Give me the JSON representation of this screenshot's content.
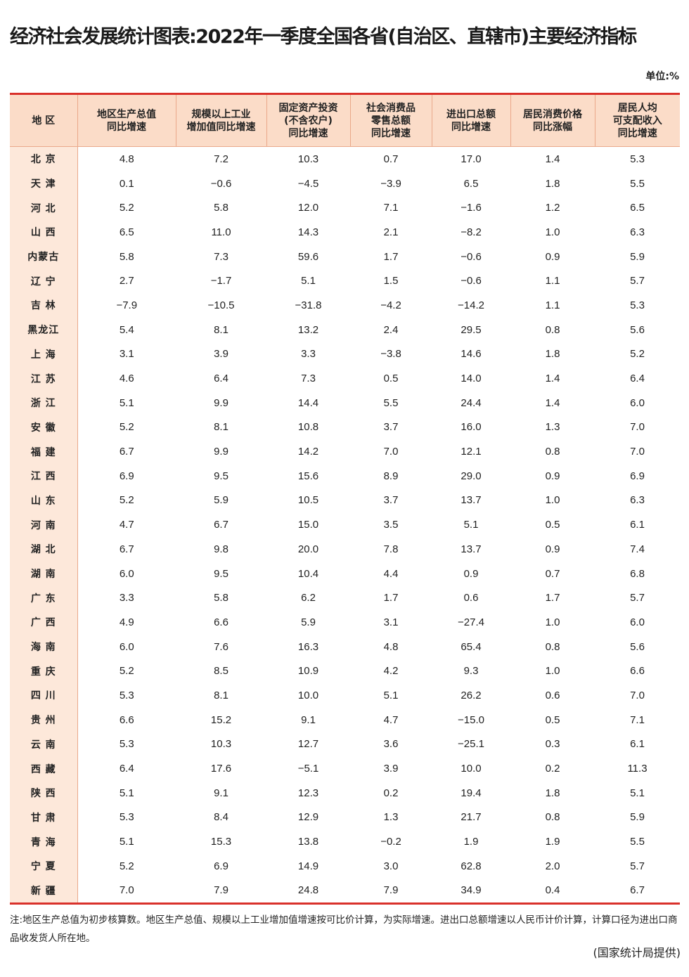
{
  "title": "经济社会发展统计图表:2022年一季度全国各省(自治区、直辖市)主要经济指标",
  "unit": "单位:%",
  "table": {
    "headers": [
      "地 区",
      "地区生产总值\n同比增速",
      "规模以上工业\n增加值同比增速",
      "固定资产投资\n(不含农户)\n同比增速",
      "社会消费品\n零售总额\n同比增速",
      "进出口总额\n同比增速",
      "居民消费价格\n同比涨幅",
      "居民人均\n可支配收入\n同比增速"
    ],
    "rows": [
      [
        "北 京",
        "4.8",
        "7.2",
        "10.3",
        "0.7",
        "17.0",
        "1.4",
        "5.3"
      ],
      [
        "天 津",
        "0.1",
        "−0.6",
        "−4.5",
        "−3.9",
        "6.5",
        "1.8",
        "5.5"
      ],
      [
        "河 北",
        "5.2",
        "5.8",
        "12.0",
        "7.1",
        "−1.6",
        "1.2",
        "6.5"
      ],
      [
        "山 西",
        "6.5",
        "11.0",
        "14.3",
        "2.1",
        "−8.2",
        "1.0",
        "6.3"
      ],
      [
        "内蒙古",
        "5.8",
        "7.3",
        "59.6",
        "1.7",
        "−0.6",
        "0.9",
        "5.9"
      ],
      [
        "辽 宁",
        "2.7",
        "−1.7",
        "5.1",
        "1.5",
        "−0.6",
        "1.1",
        "5.7"
      ],
      [
        "吉 林",
        "−7.9",
        "−10.5",
        "−31.8",
        "−4.2",
        "−14.2",
        "1.1",
        "5.3"
      ],
      [
        "黑龙江",
        "5.4",
        "8.1",
        "13.2",
        "2.4",
        "29.5",
        "0.8",
        "5.6"
      ],
      [
        "上 海",
        "3.1",
        "3.9",
        "3.3",
        "−3.8",
        "14.6",
        "1.8",
        "5.2"
      ],
      [
        "江 苏",
        "4.6",
        "6.4",
        "7.3",
        "0.5",
        "14.0",
        "1.4",
        "6.4"
      ],
      [
        "浙 江",
        "5.1",
        "9.9",
        "14.4",
        "5.5",
        "24.4",
        "1.4",
        "6.0"
      ],
      [
        "安 徽",
        "5.2",
        "8.1",
        "10.8",
        "3.7",
        "16.0",
        "1.3",
        "7.0"
      ],
      [
        "福 建",
        "6.7",
        "9.9",
        "14.2",
        "7.0",
        "12.1",
        "0.8",
        "7.0"
      ],
      [
        "江 西",
        "6.9",
        "9.5",
        "15.6",
        "8.9",
        "29.0",
        "0.9",
        "6.9"
      ],
      [
        "山 东",
        "5.2",
        "5.9",
        "10.5",
        "3.7",
        "13.7",
        "1.0",
        "6.3"
      ],
      [
        "河 南",
        "4.7",
        "6.7",
        "15.0",
        "3.5",
        "5.1",
        "0.5",
        "6.1"
      ],
      [
        "湖 北",
        "6.7",
        "9.8",
        "20.0",
        "7.8",
        "13.7",
        "0.9",
        "7.4"
      ],
      [
        "湖 南",
        "6.0",
        "9.5",
        "10.4",
        "4.4",
        "0.9",
        "0.7",
        "6.8"
      ],
      [
        "广 东",
        "3.3",
        "5.8",
        "6.2",
        "1.7",
        "0.6",
        "1.7",
        "5.7"
      ],
      [
        "广 西",
        "4.9",
        "6.6",
        "5.9",
        "3.1",
        "−27.4",
        "1.0",
        "6.0"
      ],
      [
        "海 南",
        "6.0",
        "7.6",
        "16.3",
        "4.8",
        "65.4",
        "0.8",
        "5.6"
      ],
      [
        "重 庆",
        "5.2",
        "8.5",
        "10.9",
        "4.2",
        "9.3",
        "1.0",
        "6.6"
      ],
      [
        "四 川",
        "5.3",
        "8.1",
        "10.0",
        "5.1",
        "26.2",
        "0.6",
        "7.0"
      ],
      [
        "贵 州",
        "6.6",
        "15.2",
        "9.1",
        "4.7",
        "−15.0",
        "0.5",
        "7.1"
      ],
      [
        "云 南",
        "5.3",
        "10.3",
        "12.7",
        "3.6",
        "−25.1",
        "0.3",
        "6.1"
      ],
      [
        "西 藏",
        "6.4",
        "17.6",
        "−5.1",
        "3.9",
        "10.0",
        "0.2",
        "11.3"
      ],
      [
        "陕 西",
        "5.1",
        "9.1",
        "12.3",
        "0.2",
        "19.4",
        "1.8",
        "5.1"
      ],
      [
        "甘 肃",
        "5.3",
        "8.4",
        "12.9",
        "1.3",
        "21.7",
        "0.8",
        "5.9"
      ],
      [
        "青 海",
        "5.1",
        "15.3",
        "13.8",
        "−0.2",
        "1.9",
        "1.9",
        "5.5"
      ],
      [
        "宁 夏",
        "5.2",
        "6.9",
        "14.9",
        "3.0",
        "62.8",
        "2.0",
        "5.7"
      ],
      [
        "新 疆",
        "7.0",
        "7.9",
        "24.8",
        "7.9",
        "34.9",
        "0.4",
        "6.7"
      ]
    ]
  },
  "note": "注:地区生产总值为初步核算数。地区生产总值、规模以上工业增加值增速按可比价计算，为实际增速。进出口总额增速以人民币计价计算，计算口径为进出口商品收发货人所在地。",
  "source": "(国家统计局提供)",
  "colors": {
    "accent_line": "#d9312b",
    "header_bg": "#fbdcc8",
    "region_bg": "#fde8da"
  }
}
